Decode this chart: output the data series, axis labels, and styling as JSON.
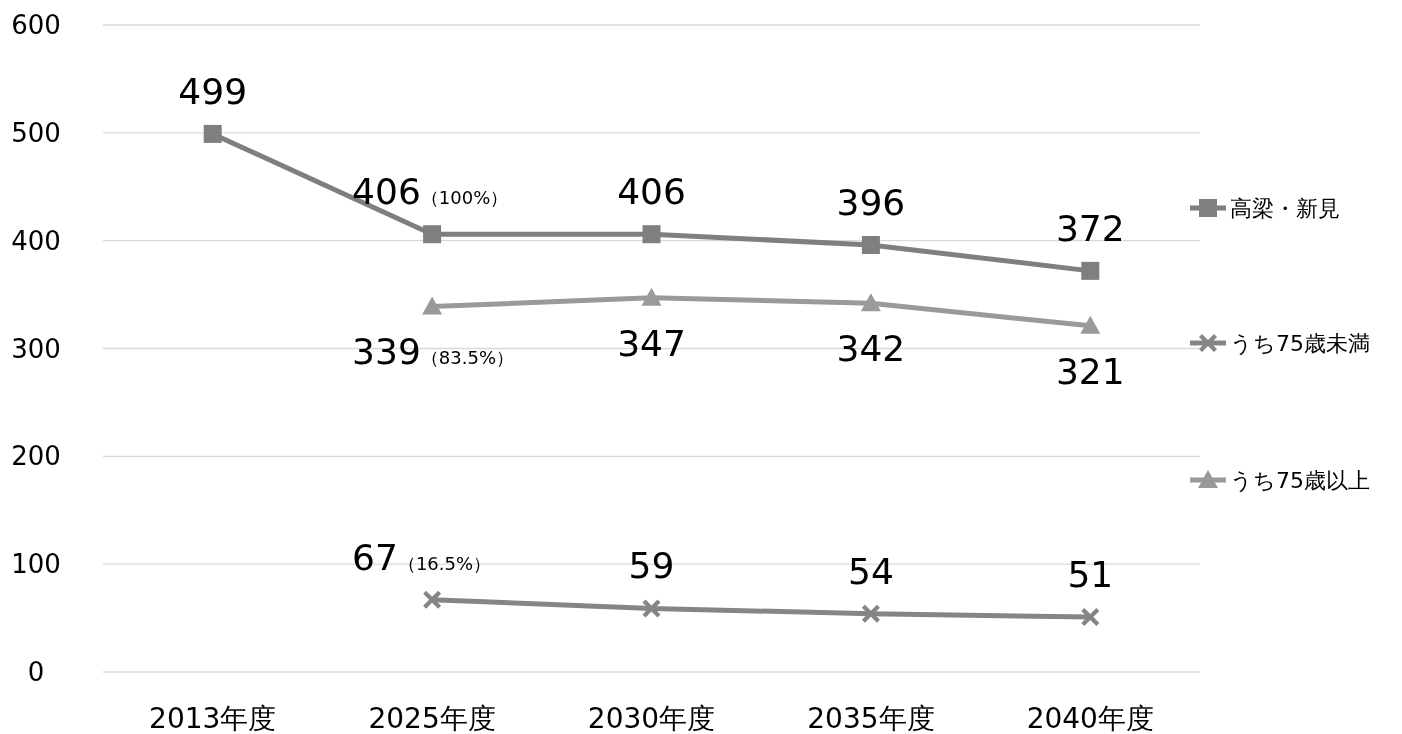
{
  "chart_data": {
    "type": "line",
    "categories": [
      "2013年度",
      "2025年度",
      "2030年度",
      "2035年度",
      "2040年度"
    ],
    "ylim": [
      0,
      600
    ],
    "yticks": [
      0,
      100,
      200,
      300,
      400,
      500,
      600
    ],
    "grid": "y",
    "legend": "right",
    "line_style": "solid",
    "series": [
      {
        "name": "高梁・新見",
        "color": "#7f7f7f",
        "marker": "square",
        "values": [
          499,
          406,
          406,
          396,
          372
        ],
        "value_labels": [
          "499",
          "406（100%）",
          "406",
          "396",
          "372"
        ]
      },
      {
        "name": "うち75歳未満",
        "color": "#858585",
        "marker": "cross",
        "values": [
          null,
          67,
          59,
          54,
          51
        ],
        "value_labels": [
          null,
          "67（16.5%）",
          "59",
          "54",
          "51"
        ]
      },
      {
        "name": "うち75歳以上",
        "color": "#9a9a9a",
        "marker": "triangle",
        "values": [
          null,
          339,
          347,
          342,
          321
        ],
        "value_labels": [
          null,
          "339（83.5%）",
          "347",
          "342",
          "321"
        ]
      }
    ]
  }
}
